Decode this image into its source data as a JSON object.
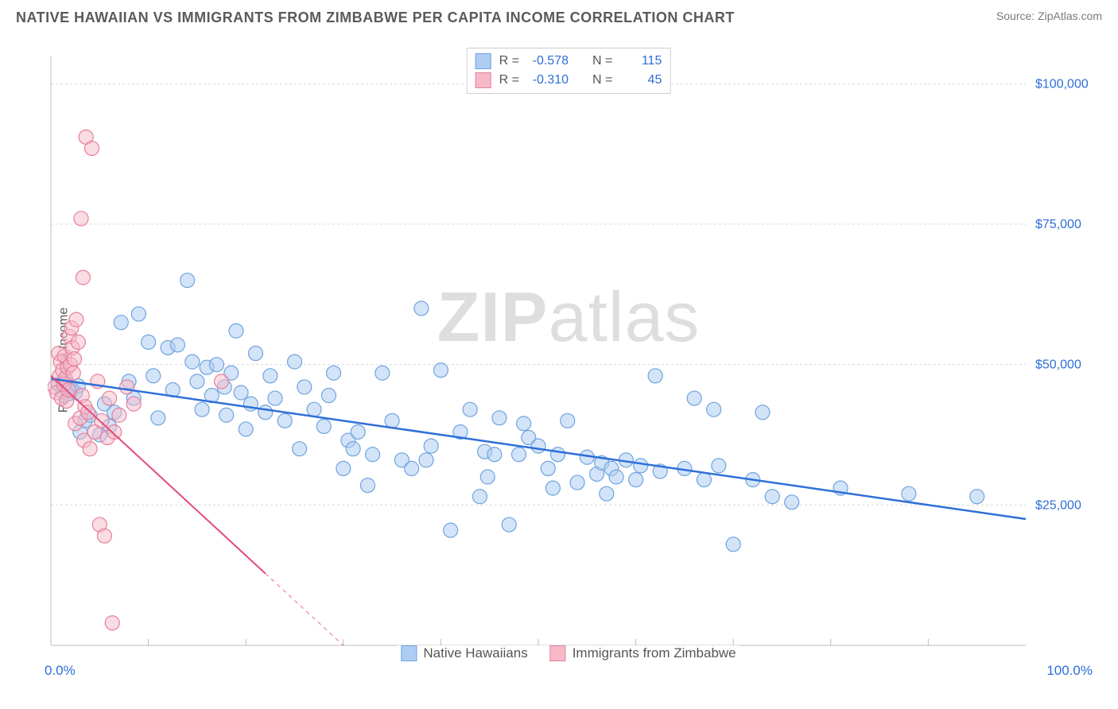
{
  "title": "NATIVE HAWAIIAN VS IMMIGRANTS FROM ZIMBABWE PER CAPITA INCOME CORRELATION CHART",
  "source_label": "Source: ZipAtlas.com",
  "ylabel": "Per Capita Income",
  "watermark_bold": "ZIP",
  "watermark_light": "atlas",
  "chart": {
    "type": "scatter",
    "xlim": [
      0,
      100
    ],
    "ylim": [
      0,
      105000
    ],
    "x_axis_label_min": "0.0%",
    "x_axis_label_max": "100.0%",
    "y_ticks": [
      25000,
      50000,
      75000,
      100000
    ],
    "y_tick_labels": [
      "$25,000",
      "$50,000",
      "$75,000",
      "$100,000"
    ],
    "x_minor_ticks": [
      10,
      20,
      30,
      40,
      50,
      60,
      70,
      80,
      90
    ],
    "grid_color": "#d8d8d8",
    "axis_color": "#bcbcbc",
    "tick_label_color": "#2e6fd8",
    "axis_end_label_color": "#2e6fd8",
    "background": "#ffffff",
    "series": [
      {
        "name": "Native Hawaiians",
        "marker_fill": "#aecdf2",
        "marker_stroke": "#6fa3e0",
        "marker_fill_opacity": 0.55,
        "marker_radius": 9,
        "line_color": "#2e6fd8",
        "line_width": 2.5,
        "R": "-0.578",
        "N": "115",
        "trend": {
          "x1": 0,
          "y1": 47500,
          "x2": 100,
          "y2": 22500
        },
        "points": [
          [
            0.8,
            46500
          ],
          [
            1.2,
            45200
          ],
          [
            1.5,
            47000
          ],
          [
            1.8,
            44800
          ],
          [
            2.0,
            46000
          ],
          [
            2.2,
            45500
          ],
          [
            2.5,
            45000
          ],
          [
            2.8,
            46200
          ],
          [
            3.0,
            38000
          ],
          [
            3.5,
            40000
          ],
          [
            4.0,
            41000
          ],
          [
            5.0,
            37500
          ],
          [
            5.5,
            43000
          ],
          [
            6.0,
            39000
          ],
          [
            6.5,
            41500
          ],
          [
            7.2,
            57500
          ],
          [
            8.0,
            47000
          ],
          [
            8.5,
            44000
          ],
          [
            9.0,
            59000
          ],
          [
            10.0,
            54000
          ],
          [
            10.5,
            48000
          ],
          [
            11.0,
            40500
          ],
          [
            12.0,
            53000
          ],
          [
            12.5,
            45500
          ],
          [
            13.0,
            53500
          ],
          [
            14.0,
            65000
          ],
          [
            14.5,
            50500
          ],
          [
            15.0,
            47000
          ],
          [
            15.5,
            42000
          ],
          [
            16.0,
            49500
          ],
          [
            16.5,
            44500
          ],
          [
            17.0,
            50000
          ],
          [
            17.8,
            46000
          ],
          [
            18.0,
            41000
          ],
          [
            18.5,
            48500
          ],
          [
            19.0,
            56000
          ],
          [
            19.5,
            45000
          ],
          [
            20.0,
            38500
          ],
          [
            20.5,
            43000
          ],
          [
            21.0,
            52000
          ],
          [
            22.0,
            41500
          ],
          [
            22.5,
            48000
          ],
          [
            23.0,
            44000
          ],
          [
            24.0,
            40000
          ],
          [
            25.0,
            50500
          ],
          [
            25.5,
            35000
          ],
          [
            26.0,
            46000
          ],
          [
            27.0,
            42000
          ],
          [
            28.0,
            39000
          ],
          [
            28.5,
            44500
          ],
          [
            29.0,
            48500
          ],
          [
            30.0,
            31500
          ],
          [
            30.5,
            36500
          ],
          [
            31.0,
            35000
          ],
          [
            31.5,
            38000
          ],
          [
            32.5,
            28500
          ],
          [
            33.0,
            34000
          ],
          [
            34.0,
            48500
          ],
          [
            35.0,
            40000
          ],
          [
            36.0,
            33000
          ],
          [
            37.0,
            31500
          ],
          [
            38.0,
            60000
          ],
          [
            38.5,
            33000
          ],
          [
            39.0,
            35500
          ],
          [
            40.0,
            49000
          ],
          [
            41.0,
            20500
          ],
          [
            42.0,
            38000
          ],
          [
            43.0,
            42000
          ],
          [
            44.0,
            26500
          ],
          [
            44.5,
            34500
          ],
          [
            44.8,
            30000
          ],
          [
            45.5,
            34000
          ],
          [
            46.0,
            40500
          ],
          [
            47.0,
            21500
          ],
          [
            48.0,
            34000
          ],
          [
            48.5,
            39500
          ],
          [
            49.0,
            37000
          ],
          [
            50.0,
            35500
          ],
          [
            51.0,
            31500
          ],
          [
            51.5,
            28000
          ],
          [
            52.0,
            34000
          ],
          [
            53.0,
            40000
          ],
          [
            54.0,
            29000
          ],
          [
            55.0,
            33500
          ],
          [
            56.0,
            30500
          ],
          [
            56.5,
            32500
          ],
          [
            57.0,
            27000
          ],
          [
            57.5,
            31500
          ],
          [
            58.0,
            30000
          ],
          [
            59.0,
            33000
          ],
          [
            60.0,
            29500
          ],
          [
            60.5,
            32000
          ],
          [
            62.0,
            48000
          ],
          [
            62.5,
            31000
          ],
          [
            65.0,
            31500
          ],
          [
            66.0,
            44000
          ],
          [
            67.0,
            29500
          ],
          [
            68.0,
            42000
          ],
          [
            68.5,
            32000
          ],
          [
            70.0,
            18000
          ],
          [
            72.0,
            29500
          ],
          [
            73.0,
            41500
          ],
          [
            74.0,
            26500
          ],
          [
            76.0,
            25500
          ],
          [
            81.0,
            28000
          ],
          [
            88.0,
            27000
          ],
          [
            95.0,
            26500
          ]
        ]
      },
      {
        "name": "Immigrants from Zimbabwe",
        "marker_fill": "#f6b9c8",
        "marker_stroke": "#e67f9e",
        "marker_fill_opacity": 0.5,
        "marker_radius": 9,
        "line_color": "#e24b7a",
        "line_width": 2,
        "line_dash_after_x": 22,
        "R": "-0.310",
        "N": "45",
        "trend": {
          "x1": 0,
          "y1": 48000,
          "x2": 30,
          "y2": 0
        },
        "points": [
          [
            0.4,
            46000
          ],
          [
            0.6,
            45000
          ],
          [
            0.8,
            52000
          ],
          [
            0.9,
            48000
          ],
          [
            1.0,
            50500
          ],
          [
            1.1,
            44000
          ],
          [
            1.2,
            49000
          ],
          [
            1.3,
            46500
          ],
          [
            1.4,
            51500
          ],
          [
            1.5,
            47500
          ],
          [
            1.6,
            43500
          ],
          [
            1.7,
            49500
          ],
          [
            1.8,
            45500
          ],
          [
            1.9,
            55000
          ],
          [
            2.0,
            50000
          ],
          [
            2.1,
            56500
          ],
          [
            2.2,
            53000
          ],
          [
            2.3,
            48500
          ],
          [
            2.4,
            51000
          ],
          [
            2.5,
            39500
          ],
          [
            2.6,
            58000
          ],
          [
            2.8,
            54000
          ],
          [
            3.0,
            40500
          ],
          [
            3.1,
            76000
          ],
          [
            3.2,
            44500
          ],
          [
            3.3,
            65500
          ],
          [
            3.4,
            36500
          ],
          [
            3.5,
            42500
          ],
          [
            3.6,
            90500
          ],
          [
            3.8,
            41500
          ],
          [
            4.0,
            35000
          ],
          [
            4.2,
            88500
          ],
          [
            4.5,
            38000
          ],
          [
            4.8,
            47000
          ],
          [
            5.0,
            21500
          ],
          [
            5.2,
            40000
          ],
          [
            5.5,
            19500
          ],
          [
            5.8,
            37000
          ],
          [
            6.0,
            44000
          ],
          [
            6.3,
            4000
          ],
          [
            6.5,
            38000
          ],
          [
            7.0,
            41000
          ],
          [
            7.8,
            46000
          ],
          [
            8.5,
            43000
          ],
          [
            17.5,
            47000
          ]
        ]
      }
    ]
  },
  "stats_legend_labels": {
    "R": "R =",
    "N": "N ="
  },
  "series_legend_label_a": "Native Hawaiians",
  "series_legend_label_b": "Immigrants from Zimbabwe"
}
